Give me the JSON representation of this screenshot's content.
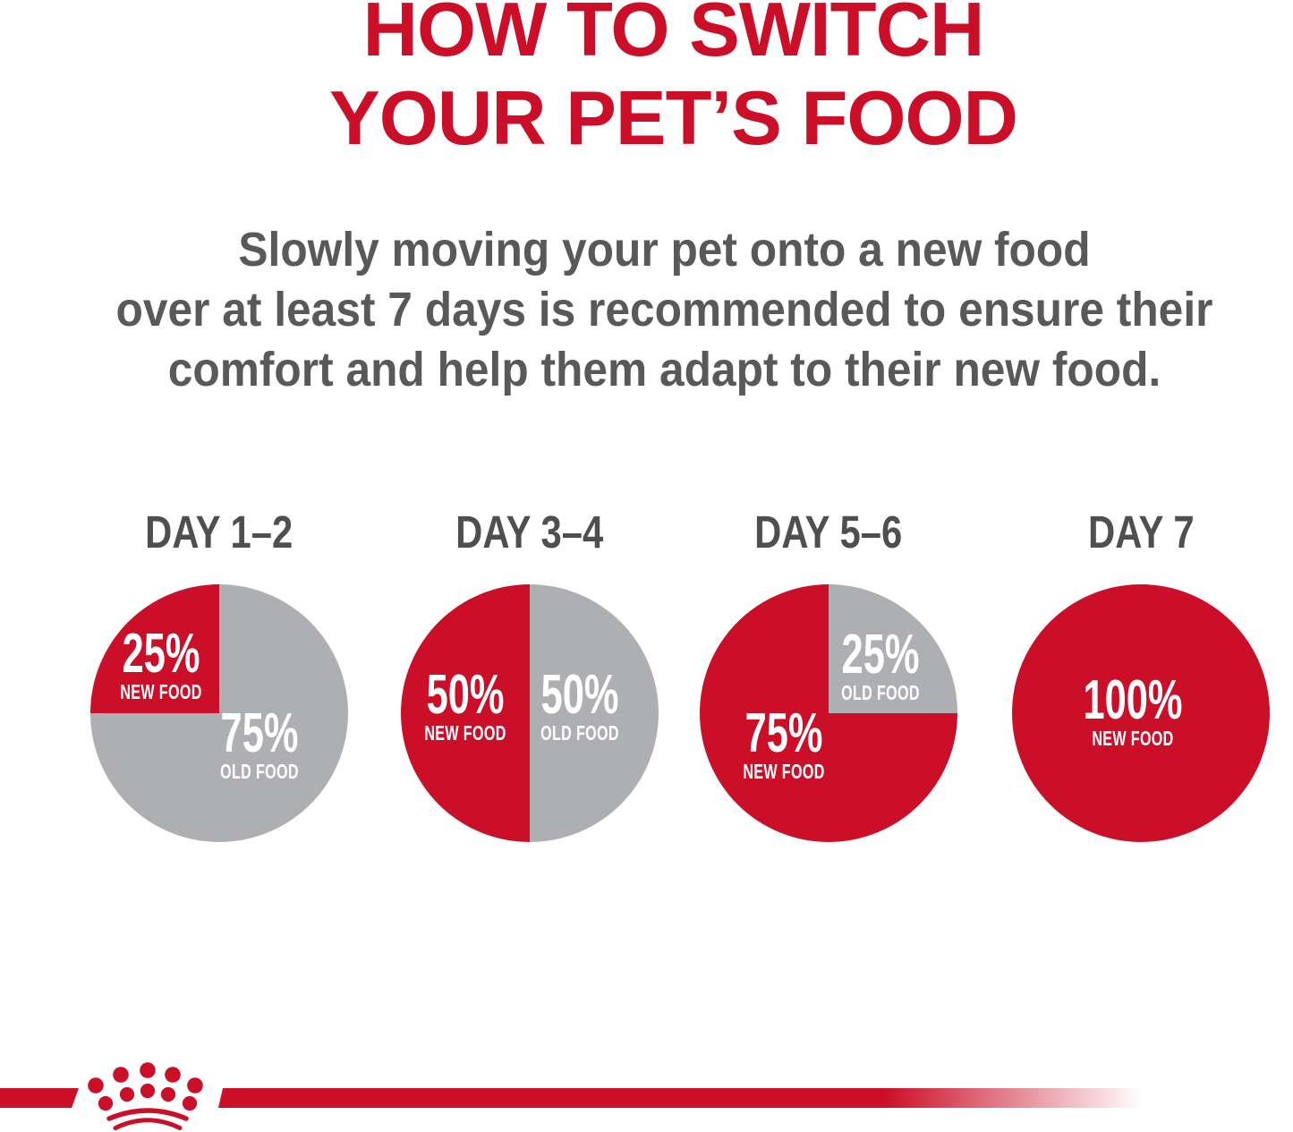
{
  "title": {
    "line1": "HOW TO SWITCH",
    "line2": "YOUR PET’S FOOD"
  },
  "intro": {
    "lines": [
      "Slowly moving your pet onto a new food",
      "over at least 7 days is recommended to ensure their",
      "comfort and help them adapt to their new food."
    ]
  },
  "colors": {
    "red": "#CB0F28",
    "pie_gray": "#AEAFB2",
    "text_gray": "#58595B",
    "day_label_gray": "#4E4F51",
    "background": "#FFFFFF",
    "pie_label_white": "#FFFFFF"
  },
  "chart_data": [
    {
      "type": "pie",
      "title": "DAY 1–2",
      "slices": [
        {
          "label": "NEW FOOD",
          "value": 25,
          "color": "#CB0F28"
        },
        {
          "label": "OLD FOOD",
          "value": 75,
          "color": "#AEAFB2"
        }
      ]
    },
    {
      "type": "pie",
      "title": "DAY 3–4",
      "slices": [
        {
          "label": "NEW FOOD",
          "value": 50,
          "color": "#CB0F28"
        },
        {
          "label": "OLD FOOD",
          "value": 50,
          "color": "#AEAFB2"
        }
      ]
    },
    {
      "type": "pie",
      "title": "DAY 5–6",
      "slices": [
        {
          "label": "NEW FOOD",
          "value": 75,
          "color": "#CB0F28"
        },
        {
          "label": "OLD FOOD",
          "value": 25,
          "color": "#AEAFB2"
        }
      ]
    },
    {
      "type": "pie",
      "title": "DAY 7",
      "slices": [
        {
          "label": "NEW FOOD",
          "value": 100,
          "color": "#CB0F28"
        }
      ]
    }
  ],
  "footer": {
    "logo_icon": "royal-canin-crown-icon"
  }
}
